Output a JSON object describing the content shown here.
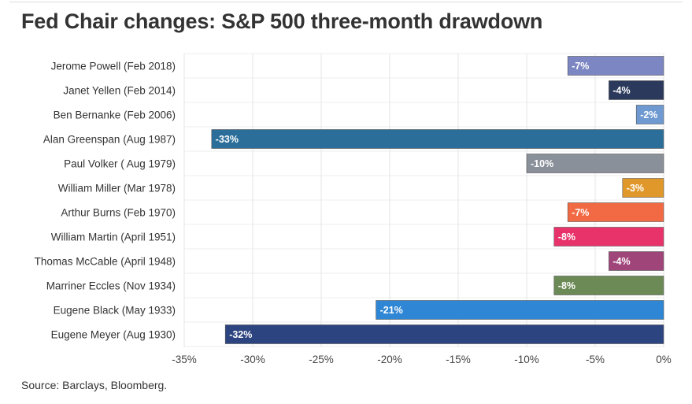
{
  "title": "Fed Chair changes: S&P 500 three-month drawdown",
  "source": "Source: Barclays, Bloomberg.",
  "chart_data": {
    "type": "bar",
    "orientation": "horizontal",
    "title": "Fed Chair changes: S&P 500 three-month drawdown",
    "categories": [
      "Jerome Powell (Feb 2018)",
      "Janet Yellen (Feb 2014)",
      "Ben Bernanke (Feb 2006)",
      "Alan Greenspan (Aug 1987)",
      "Paul Volker ( Aug 1979)",
      "William Miller (Mar 1978)",
      "Arthur Burns (Feb 1970)",
      "William Martin (April 1951)",
      "Thomas McCable (April 1948)",
      "Marriner Eccles (Nov 1934)",
      "Eugene Black (May 1933)",
      "Eugene Meyer (Aug 1930)"
    ],
    "values": [
      -7,
      -4,
      -2,
      -33,
      -10,
      -3,
      -7,
      -8,
      -4,
      -8,
      -21,
      -32
    ],
    "data_labels": [
      "-7%",
      "-4%",
      "-2%",
      "-33%",
      "-10%",
      "-3%",
      "-7%",
      "-8%",
      "-4%",
      "-8%",
      "-21%",
      "-32%"
    ],
    "colors": [
      "#7b86c2",
      "#2b3a5c",
      "#6f9ad1",
      "#2b6e9a",
      "#8a9099",
      "#e0982a",
      "#f26a43",
      "#e8336a",
      "#a0457a",
      "#6b8a55",
      "#2e86d4",
      "#2c4480"
    ],
    "xlim": [
      -35,
      0
    ],
    "xticks": [
      -35,
      -30,
      -25,
      -20,
      -15,
      -10,
      -5,
      0
    ],
    "xtick_labels": [
      "-35%",
      "-30%",
      "-25%",
      "-20%",
      "-15%",
      "-10%",
      "-5%",
      "0%"
    ],
    "grid": true
  }
}
